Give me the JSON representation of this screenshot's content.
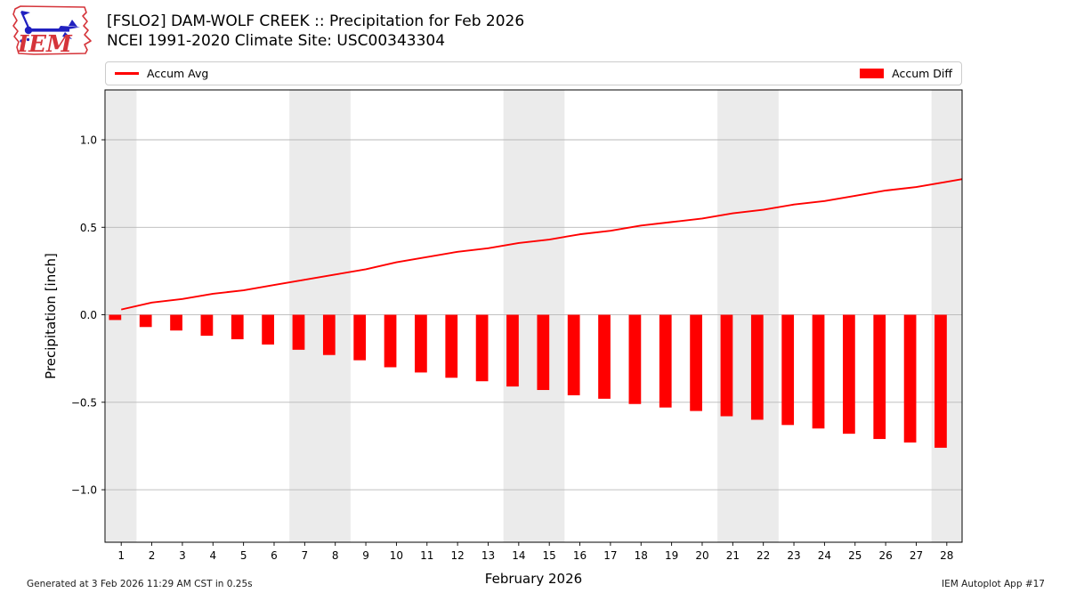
{
  "header": {
    "logo_text": "IEM",
    "title": "[FSLO2] DAM-WOLF CREEK :: Precipitation for Feb 2026",
    "subtitle": "NCEI 1991-2020 Climate Site: USC00343304"
  },
  "legend": {
    "avg_label": "Accum Avg",
    "diff_label": "Accum Diff"
  },
  "footer": {
    "generated": "Generated at 3 Feb 2026 11:29 AM CST in 0.25s",
    "app": "IEM Autoplot App #17"
  },
  "colors": {
    "accent_red": "#ff0000",
    "weekend_band": "#ebebeb",
    "gridline": "#b8b8b8",
    "axis": "#000000",
    "logo_red": "#d5343a",
    "logo_blue": "#2020c0"
  },
  "chart_data": {
    "type": "bar",
    "title": "[FSLO2] DAM-WOLF CREEK :: Precipitation for Feb 2026",
    "subtitle": "NCEI 1991-2020 Climate Site: USC00343304",
    "xlabel": "February 2026",
    "ylabel": "Precipitation [inch]",
    "x": [
      1,
      2,
      3,
      4,
      5,
      6,
      7,
      8,
      9,
      10,
      11,
      12,
      13,
      14,
      15,
      16,
      17,
      18,
      19,
      20,
      21,
      22,
      23,
      24,
      25,
      26,
      27,
      28
    ],
    "xtick_labels": [
      "1",
      "2",
      "3",
      "4",
      "5",
      "6",
      "7",
      "8",
      "9",
      "10",
      "11",
      "12",
      "13",
      "14",
      "15",
      "16",
      "17",
      "18",
      "19",
      "20",
      "21",
      "22",
      "23",
      "24",
      "25",
      "26",
      "27",
      "28"
    ],
    "series": [
      {
        "name": "Accum Avg",
        "kind": "line",
        "color": "#ff0000",
        "values": [
          0.03,
          0.07,
          0.09,
          0.12,
          0.14,
          0.17,
          0.2,
          0.23,
          0.26,
          0.3,
          0.33,
          0.36,
          0.38,
          0.41,
          0.43,
          0.46,
          0.48,
          0.51,
          0.53,
          0.55,
          0.58,
          0.6,
          0.63,
          0.65,
          0.68,
          0.71,
          0.73,
          0.76
        ]
      },
      {
        "name": "Accum Diff",
        "kind": "bar",
        "color": "#ff0000",
        "values": [
          -0.03,
          -0.07,
          -0.09,
          -0.12,
          -0.14,
          -0.17,
          -0.2,
          -0.23,
          -0.26,
          -0.3,
          -0.33,
          -0.36,
          -0.38,
          -0.41,
          -0.43,
          -0.46,
          -0.48,
          -0.51,
          -0.53,
          -0.55,
          -0.58,
          -0.6,
          -0.63,
          -0.65,
          -0.68,
          -0.71,
          -0.73,
          -0.76
        ]
      }
    ],
    "xlim": [
      0.47,
      28.5
    ],
    "ylim": [
      -1.3,
      1.285
    ],
    "yticks": [
      1.0,
      0.5,
      0.0,
      -0.5,
      -1.0
    ],
    "ytick_labels": [
      "1.0",
      "0.5",
      "0.0",
      "−0.5",
      "−1.0"
    ],
    "grid": true,
    "legend_position": "top",
    "weekend_bands": [
      [
        0.5,
        1.5
      ],
      [
        6.5,
        8.5
      ],
      [
        13.5,
        15.5
      ],
      [
        20.5,
        22.5
      ],
      [
        27.5,
        28.5
      ]
    ],
    "bar_width": 0.4
  }
}
